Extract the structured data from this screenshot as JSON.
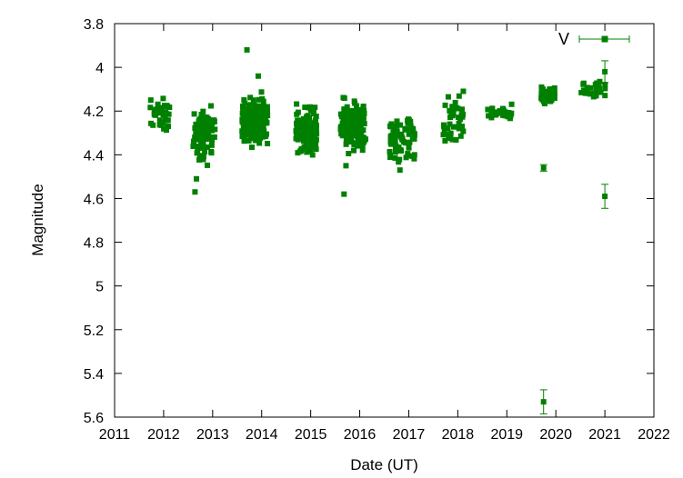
{
  "chart_data": {
    "type": "scatter",
    "title": "",
    "xlabel": "Date (UT)",
    "ylabel": "Magnitude",
    "xlim": [
      2011,
      2022
    ],
    "ylim": [
      3.8,
      5.6
    ],
    "y_inverted": true,
    "x_ticks": [
      "2011",
      "2012",
      "2013",
      "2014",
      "2015",
      "2016",
      "2017",
      "2018",
      "2019",
      "2020",
      "2021",
      "2022"
    ],
    "y_ticks": [
      "3.8",
      "4",
      "4.2",
      "4.4",
      "4.6",
      "4.8",
      "5",
      "5.2",
      "5.4",
      "5.6"
    ],
    "grid": false,
    "legend_position": "top-right",
    "marker_color": "#008000",
    "series": [
      {
        "name": "V",
        "clusters": [
          {
            "x_range": [
              2011.72,
              2012.12
            ],
            "y_range": [
              4.09,
              4.34
            ],
            "count": 40
          },
          {
            "x_range": [
              2012.6,
              2013.05
            ],
            "y_range": [
              4.14,
              4.46
            ],
            "count": 85
          },
          {
            "x_range": [
              2013.6,
              2014.12
            ],
            "y_range": [
              4.1,
              4.38
            ],
            "count": 240
          },
          {
            "x_range": [
              2014.7,
              2015.12
            ],
            "y_range": [
              4.15,
              4.42
            ],
            "count": 120
          },
          {
            "x_range": [
              2015.6,
              2016.12
            ],
            "y_range": [
              4.1,
              4.42
            ],
            "count": 150
          },
          {
            "x_range": [
              2016.6,
              2017.12
            ],
            "y_range": [
              4.2,
              4.46
            ],
            "count": 70
          },
          {
            "x_range": [
              2017.7,
              2018.12
            ],
            "y_range": [
              4.1,
              4.36
            ],
            "count": 45
          },
          {
            "x_range": [
              2018.6,
              2019.12
            ],
            "y_range": [
              4.16,
              4.27
            ],
            "count": 25
          },
          {
            "x_range": [
              2019.7,
              2020.0
            ],
            "y_range": [
              4.07,
              4.18
            ],
            "count": 60
          },
          {
            "x_range": [
              2020.5,
              2021.05
            ],
            "y_range": [
              4.05,
              4.15
            ],
            "count": 30
          }
        ],
        "points": [
          {
            "x": 2012.67,
            "y": 4.51
          },
          {
            "x": 2012.64,
            "y": 4.57
          },
          {
            "x": 2013.7,
            "y": 3.92
          },
          {
            "x": 2013.93,
            "y": 4.04
          },
          {
            "x": 2015.68,
            "y": 4.58
          },
          {
            "x": 2015.72,
            "y": 4.45
          },
          {
            "x": 2016.82,
            "y": 4.47
          },
          {
            "x": 2019.75,
            "y": 4.46,
            "err": 0.015
          },
          {
            "x": 2019.75,
            "y": 5.53,
            "err": 0.055
          },
          {
            "x": 2021.0,
            "y": 4.59,
            "err": 0.055
          },
          {
            "x": 2021.0,
            "y": 4.02,
            "err": 0.05
          }
        ]
      }
    ]
  }
}
